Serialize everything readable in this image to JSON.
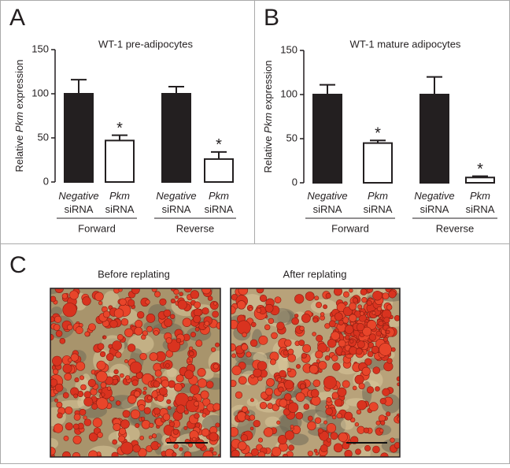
{
  "chart_data": [
    {
      "type": "bar",
      "panel_label": "A",
      "title": "WT-1 pre-adipocytes",
      "ylabel": "Relative Pkm expression",
      "categories": [
        "Negative siRNA",
        "Pkm siRNA",
        "Negative siRNA",
        "Pkm siRNA"
      ],
      "values": [
        100,
        47,
        100,
        26
      ],
      "errors": [
        16,
        6,
        8,
        8
      ],
      "colors": [
        "#231f20",
        "#ffffff",
        "#231f20",
        "#ffffff"
      ],
      "annotations": [
        null,
        "*",
        null,
        "*"
      ],
      "group_labels": [
        "Forward",
        "Reverse"
      ],
      "ylim": [
        0,
        150
      ],
      "yticks": [
        0,
        50,
        100,
        150
      ]
    },
    {
      "type": "bar",
      "panel_label": "B",
      "title": "WT-1 mature adipocytes",
      "ylabel": "Relative Pkm expression",
      "categories": [
        "Negative siRNA",
        "Pkm siRNA",
        "Negative siRNA",
        "Pkm siRNA"
      ],
      "values": [
        100,
        45,
        100,
        6
      ],
      "errors": [
        11,
        3,
        20,
        1.5
      ],
      "colors": [
        "#231f20",
        "#ffffff",
        "#231f20",
        "#ffffff"
      ],
      "annotations": [
        null,
        "*",
        null,
        "*"
      ],
      "group_labels": [
        "Forward",
        "Reverse"
      ],
      "ylim": [
        0,
        150
      ],
      "yticks": [
        0,
        50,
        100,
        150
      ]
    }
  ],
  "panel_c": {
    "label": "C",
    "images": [
      {
        "caption": "Before replating"
      },
      {
        "caption": "After replating"
      }
    ]
  }
}
